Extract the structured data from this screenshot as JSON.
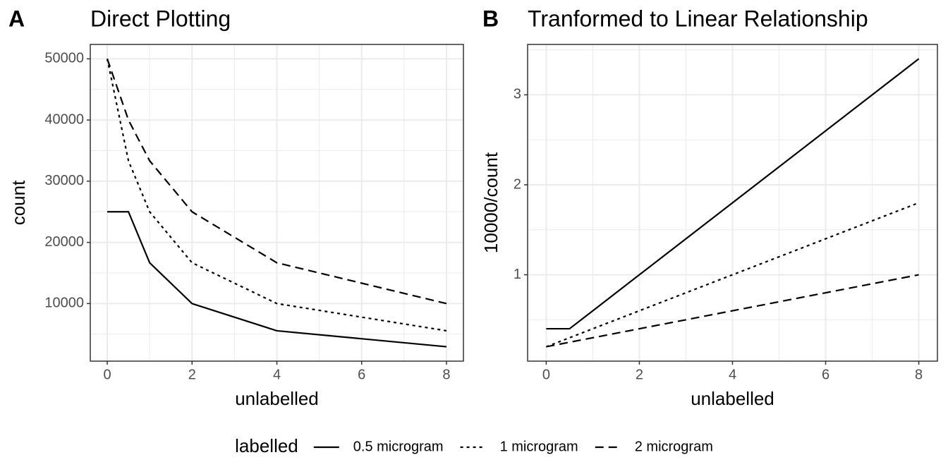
{
  "chart_data": [
    {
      "type": "line",
      "tag": "A",
      "title": "Direct Plotting",
      "xlabel": "unlabelled",
      "ylabel": "count",
      "x": [
        0,
        0.5,
        1,
        2,
        4,
        8
      ],
      "series": [
        {
          "name": "0.5 microgram",
          "linetype": "solid",
          "color": "#000000",
          "values": [
            25000,
            25000,
            16667,
            10000,
            5556,
            2941
          ]
        },
        {
          "name": "1 microgram",
          "linetype": "dotted",
          "color": "#000000",
          "values": [
            50000,
            33333,
            25000,
            16667,
            10000,
            5556
          ]
        },
        {
          "name": "2 microgram",
          "linetype": "dashed",
          "color": "#000000",
          "values": [
            50000,
            40000,
            33333,
            25000,
            16667,
            10000
          ]
        }
      ],
      "xlim": [
        -0.4,
        8.4
      ],
      "xticks": [
        0,
        2,
        4,
        6,
        8
      ],
      "ylim": [
        588,
        52353
      ],
      "yticks": [
        10000,
        20000,
        30000,
        40000,
        50000
      ],
      "grid": true
    },
    {
      "type": "line",
      "tag": "B",
      "title": "Tranformed to Linear Relationship",
      "xlabel": "unlabelled",
      "ylabel": "10000/count",
      "x": [
        0,
        0.5,
        1,
        2,
        4,
        8
      ],
      "series": [
        {
          "linetype": "solid",
          "color": "#000000",
          "values": [
            0.4,
            0.4,
            0.6,
            1.0,
            1.8,
            3.4
          ]
        },
        {
          "linetype": "dotted",
          "color": "#000000",
          "values": [
            0.2,
            0.3,
            0.4,
            0.6,
            1.0,
            1.8
          ]
        },
        {
          "linetype": "dashed",
          "color": "#000000",
          "values": [
            0.2,
            0.25,
            0.3,
            0.4,
            0.6,
            1.0
          ]
        }
      ],
      "xlim": [
        -0.4,
        8.4
      ],
      "xticks": [
        0,
        2,
        4,
        6,
        8
      ],
      "ylim": [
        0.04,
        3.56
      ],
      "yticks": [
        1,
        2,
        3
      ],
      "grid": true
    }
  ],
  "legend": {
    "title": "labelled",
    "position": "bottom"
  }
}
